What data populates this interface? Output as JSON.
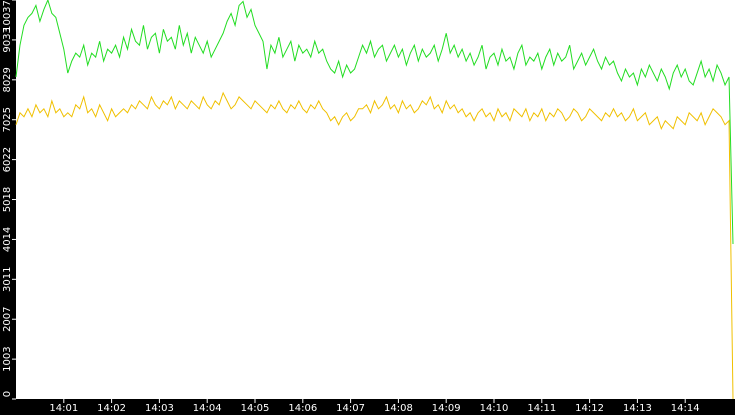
{
  "chart_data": {
    "type": "line",
    "categories": [
      null,
      null,
      null,
      null,
      null,
      null,
      null,
      null,
      null,
      null,
      null,
      null,
      "14:01",
      null,
      null,
      null,
      null,
      null,
      null,
      null,
      null,
      null,
      null,
      null,
      "14:02",
      null,
      null,
      null,
      null,
      null,
      null,
      null,
      null,
      null,
      null,
      null,
      "14:03",
      null,
      null,
      null,
      null,
      null,
      null,
      null,
      null,
      null,
      null,
      null,
      "14:04",
      null,
      null,
      null,
      null,
      null,
      null,
      null,
      null,
      null,
      null,
      null,
      "14:05",
      null,
      null,
      null,
      null,
      null,
      null,
      null,
      null,
      null,
      null,
      null,
      "14:06",
      null,
      null,
      null,
      null,
      null,
      null,
      null,
      null,
      null,
      null,
      null,
      "14:07",
      null,
      null,
      null,
      null,
      null,
      null,
      null,
      null,
      null,
      null,
      null,
      "14:08",
      null,
      null,
      null,
      null,
      null,
      null,
      null,
      null,
      null,
      null,
      null,
      "14:09",
      null,
      null,
      null,
      null,
      null,
      null,
      null,
      null,
      null,
      null,
      null,
      "14:10",
      null,
      null,
      null,
      null,
      null,
      null,
      null,
      null,
      null,
      null,
      null,
      "14:11",
      null,
      null,
      null,
      null,
      null,
      null,
      null,
      null,
      null,
      null,
      null,
      "14:12",
      null,
      null,
      null,
      null,
      null,
      null,
      null,
      null,
      null,
      null,
      null,
      "14:13",
      null,
      null,
      null,
      null,
      null,
      null,
      null,
      null,
      null,
      null,
      null,
      "14:14",
      null,
      null,
      null,
      null,
      null,
      null,
      null,
      null,
      null,
      null,
      null,
      null
    ],
    "series": [
      {
        "color": "#22dd22",
        "values": [
          8100,
          8900,
          9400,
          9600,
          9700,
          9900,
          9500,
          9800,
          10037,
          9700,
          9600,
          9200,
          8800,
          8200,
          8500,
          8700,
          8600,
          8900,
          8400,
          8700,
          8600,
          9000,
          8500,
          8800,
          8700,
          8900,
          8600,
          9100,
          8800,
          9300,
          9000,
          8900,
          9400,
          8800,
          9100,
          9200,
          8700,
          9300,
          9000,
          9100,
          8800,
          9400,
          8900,
          9200,
          8700,
          9100,
          8900,
          8700,
          9000,
          8600,
          8800,
          9000,
          9200,
          9500,
          9700,
          9400,
          9900,
          10000,
          9600,
          9800,
          9400,
          9200,
          9000,
          8300,
          8900,
          8700,
          9100,
          8600,
          8800,
          9000,
          8500,
          8900,
          8700,
          8800,
          8600,
          9000,
          8700,
          8800,
          8500,
          8300,
          8200,
          8500,
          8100,
          8400,
          8200,
          8300,
          8600,
          8900,
          8700,
          9000,
          8600,
          8800,
          8900,
          8500,
          8700,
          8900,
          8600,
          8800,
          8400,
          8700,
          8900,
          8500,
          8800,
          8600,
          8700,
          8900,
          8500,
          8800,
          9200,
          8700,
          8900,
          8600,
          8800,
          8500,
          8700,
          8400,
          8600,
          8900,
          8300,
          8600,
          8700,
          8400,
          8800,
          8500,
          8600,
          8300,
          8700,
          8900,
          8400,
          8600,
          8500,
          8700,
          8300,
          8600,
          8800,
          8400,
          8700,
          8500,
          8600,
          8900,
          8300,
          8500,
          8700,
          8400,
          8600,
          8800,
          8500,
          8300,
          8600,
          8400,
          8500,
          8200,
          8000,
          8300,
          8100,
          8200,
          7900,
          8300,
          8100,
          8400,
          8200,
          8000,
          8300,
          8100,
          7800,
          8200,
          8400,
          8100,
          8300,
          8000,
          7900,
          8200,
          8500,
          8100,
          8300,
          8000,
          8400,
          8200,
          7900,
          8100,
          3900
        ]
      },
      {
        "color": "#f0c000",
        "values": [
          6900,
          7200,
          7100,
          7300,
          7100,
          7400,
          7200,
          7300,
          7100,
          7500,
          7200,
          7300,
          7100,
          7200,
          7100,
          7400,
          7300,
          7600,
          7200,
          7300,
          7100,
          7400,
          7200,
          7000,
          7300,
          7100,
          7200,
          7300,
          7200,
          7400,
          7300,
          7500,
          7400,
          7300,
          7600,
          7400,
          7300,
          7500,
          7400,
          7600,
          7300,
          7500,
          7400,
          7300,
          7500,
          7400,
          7300,
          7600,
          7400,
          7300,
          7500,
          7400,
          7700,
          7500,
          7300,
          7400,
          7600,
          7500,
          7400,
          7300,
          7500,
          7400,
          7300,
          7200,
          7400,
          7300,
          7500,
          7300,
          7200,
          7400,
          7300,
          7500,
          7300,
          7200,
          7400,
          7300,
          7500,
          7300,
          7200,
          7000,
          7100,
          6900,
          7100,
          7200,
          7000,
          7100,
          7300,
          7300,
          7400,
          7200,
          7500,
          7300,
          7400,
          7600,
          7300,
          7400,
          7200,
          7500,
          7300,
          7400,
          7200,
          7300,
          7500,
          7400,
          7600,
          7300,
          7400,
          7200,
          7500,
          7300,
          7400,
          7200,
          7300,
          7100,
          7200,
          7000,
          7200,
          7300,
          7100,
          7200,
          7000,
          7300,
          7100,
          7200,
          7000,
          7300,
          7200,
          7100,
          7300,
          7000,
          7200,
          7100,
          7300,
          7000,
          7200,
          7100,
          7300,
          7200,
          7000,
          7100,
          7300,
          7200,
          7000,
          7100,
          7300,
          7200,
          7100,
          7000,
          7200,
          7100,
          7300,
          7100,
          7200,
          7000,
          7100,
          7300,
          7000,
          7100,
          7200,
          6900,
          7000,
          7100,
          6800,
          7000,
          6900,
          6800,
          7100,
          7000,
          6900,
          7200,
          7100,
          7000,
          7200,
          6900,
          7100,
          7300,
          7200,
          7100,
          6900,
          7000,
          0
        ]
      }
    ],
    "ylim": [
      0,
      10037
    ],
    "yticks": [
      0,
      1003,
      2007,
      3011,
      4014,
      5018,
      6022,
      7025,
      8029,
      9033,
      10037
    ]
  }
}
